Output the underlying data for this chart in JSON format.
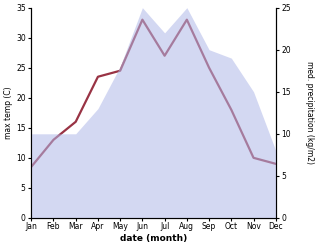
{
  "months": [
    "Jan",
    "Feb",
    "Mar",
    "Apr",
    "May",
    "Jun",
    "Jul",
    "Aug",
    "Sep",
    "Oct",
    "Nov",
    "Dec"
  ],
  "temp": [
    8.5,
    13.0,
    16.0,
    23.5,
    24.5,
    33.0,
    27.0,
    33.0,
    25.0,
    18.0,
    10.0,
    9.0
  ],
  "precip": [
    10.0,
    10.0,
    10.0,
    13.0,
    18.0,
    25.0,
    22.0,
    25.0,
    20.0,
    19.0,
    15.0,
    8.0
  ],
  "temp_color": "#993344",
  "precip_fill_color": "#b0b8e8",
  "precip_fill_alpha": 0.55,
  "temp_ylim": [
    0,
    35
  ],
  "precip_ylim": [
    0,
    25
  ],
  "temp_yticks": [
    0,
    5,
    10,
    15,
    20,
    25,
    30,
    35
  ],
  "precip_yticks": [
    0,
    5,
    10,
    15,
    20,
    25
  ],
  "xlabel": "date (month)",
  "ylabel_left": "max temp (C)",
  "ylabel_right": "med. precipitation (kg/m2)",
  "temp_linewidth": 1.6,
  "bg_color": "#ffffff"
}
